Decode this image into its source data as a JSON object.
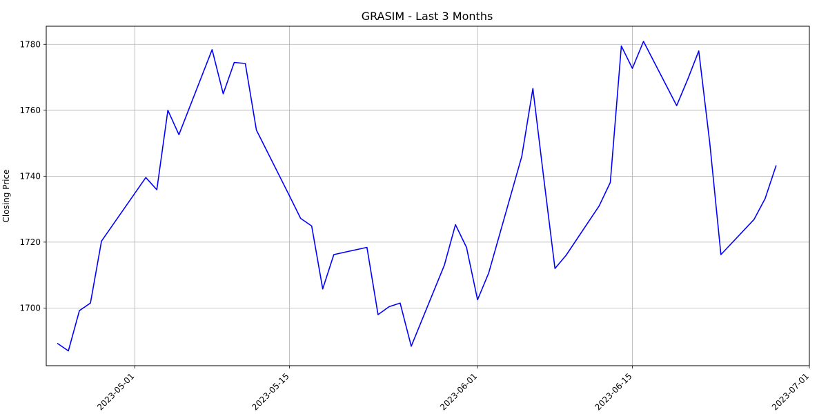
{
  "chart_data": {
    "type": "line",
    "title": "GRASIM - Last 3 Months",
    "xlabel": "",
    "ylabel": "Closing Price",
    "xlim": [
      "2023-04-23",
      "2023-07-01"
    ],
    "ylim": [
      1682.5,
      1785.5
    ],
    "x_ticks": [
      "2023-05-01",
      "2023-05-15",
      "2023-06-01",
      "2023-06-15",
      "2023-07-01"
    ],
    "y_ticks": [
      1700,
      1720,
      1740,
      1760,
      1780
    ],
    "grid": true,
    "color": "#0000ff",
    "series": [
      {
        "values": [
          [
            "2023-04-24",
            1689.3
          ],
          [
            "2023-04-25",
            1687.0
          ],
          [
            "2023-04-26",
            1699.2
          ],
          [
            "2023-04-27",
            1701.5
          ],
          [
            "2023-04-28",
            1720.3
          ],
          [
            "2023-05-02",
            1739.6
          ],
          [
            "2023-05-03",
            1735.9
          ],
          [
            "2023-05-04",
            1760.0
          ],
          [
            "2023-05-05",
            1752.6
          ],
          [
            "2023-05-08",
            1778.4
          ],
          [
            "2023-05-09",
            1765.0
          ],
          [
            "2023-05-10",
            1774.5
          ],
          [
            "2023-05-11",
            1774.2
          ],
          [
            "2023-05-12",
            1754.0
          ],
          [
            "2023-05-15",
            1734.0
          ],
          [
            "2023-05-16",
            1727.2
          ],
          [
            "2023-05-17",
            1724.9
          ],
          [
            "2023-05-18",
            1705.8
          ],
          [
            "2023-05-19",
            1716.2
          ],
          [
            "2023-05-22",
            1718.4
          ],
          [
            "2023-05-23",
            1698.0
          ],
          [
            "2023-05-24",
            1700.4
          ],
          [
            "2023-05-25",
            1701.5
          ],
          [
            "2023-05-26",
            1688.4
          ],
          [
            "2023-05-29",
            1713.0
          ],
          [
            "2023-05-30",
            1725.3
          ],
          [
            "2023-05-31",
            1718.4
          ],
          [
            "2023-06-01",
            1702.5
          ],
          [
            "2023-06-02",
            1710.6
          ],
          [
            "2023-06-05",
            1746.0
          ],
          [
            "2023-06-06",
            1766.6
          ],
          [
            "2023-06-07",
            1739.0
          ],
          [
            "2023-06-08",
            1712.0
          ],
          [
            "2023-06-09",
            1716.0
          ],
          [
            "2023-06-12",
            1731.0
          ],
          [
            "2023-06-13",
            1738.1
          ],
          [
            "2023-06-14",
            1779.5
          ],
          [
            "2023-06-15",
            1772.7
          ],
          [
            "2023-06-16",
            1780.9
          ],
          [
            "2023-06-19",
            1761.4
          ],
          [
            "2023-06-20",
            1769.4
          ],
          [
            "2023-06-21",
            1778.0
          ],
          [
            "2023-06-22",
            1750.0
          ],
          [
            "2023-06-23",
            1716.2
          ],
          [
            "2023-06-26",
            1726.9
          ],
          [
            "2023-06-27",
            1733.2
          ],
          [
            "2023-06-28",
            1743.3
          ]
        ]
      }
    ]
  }
}
